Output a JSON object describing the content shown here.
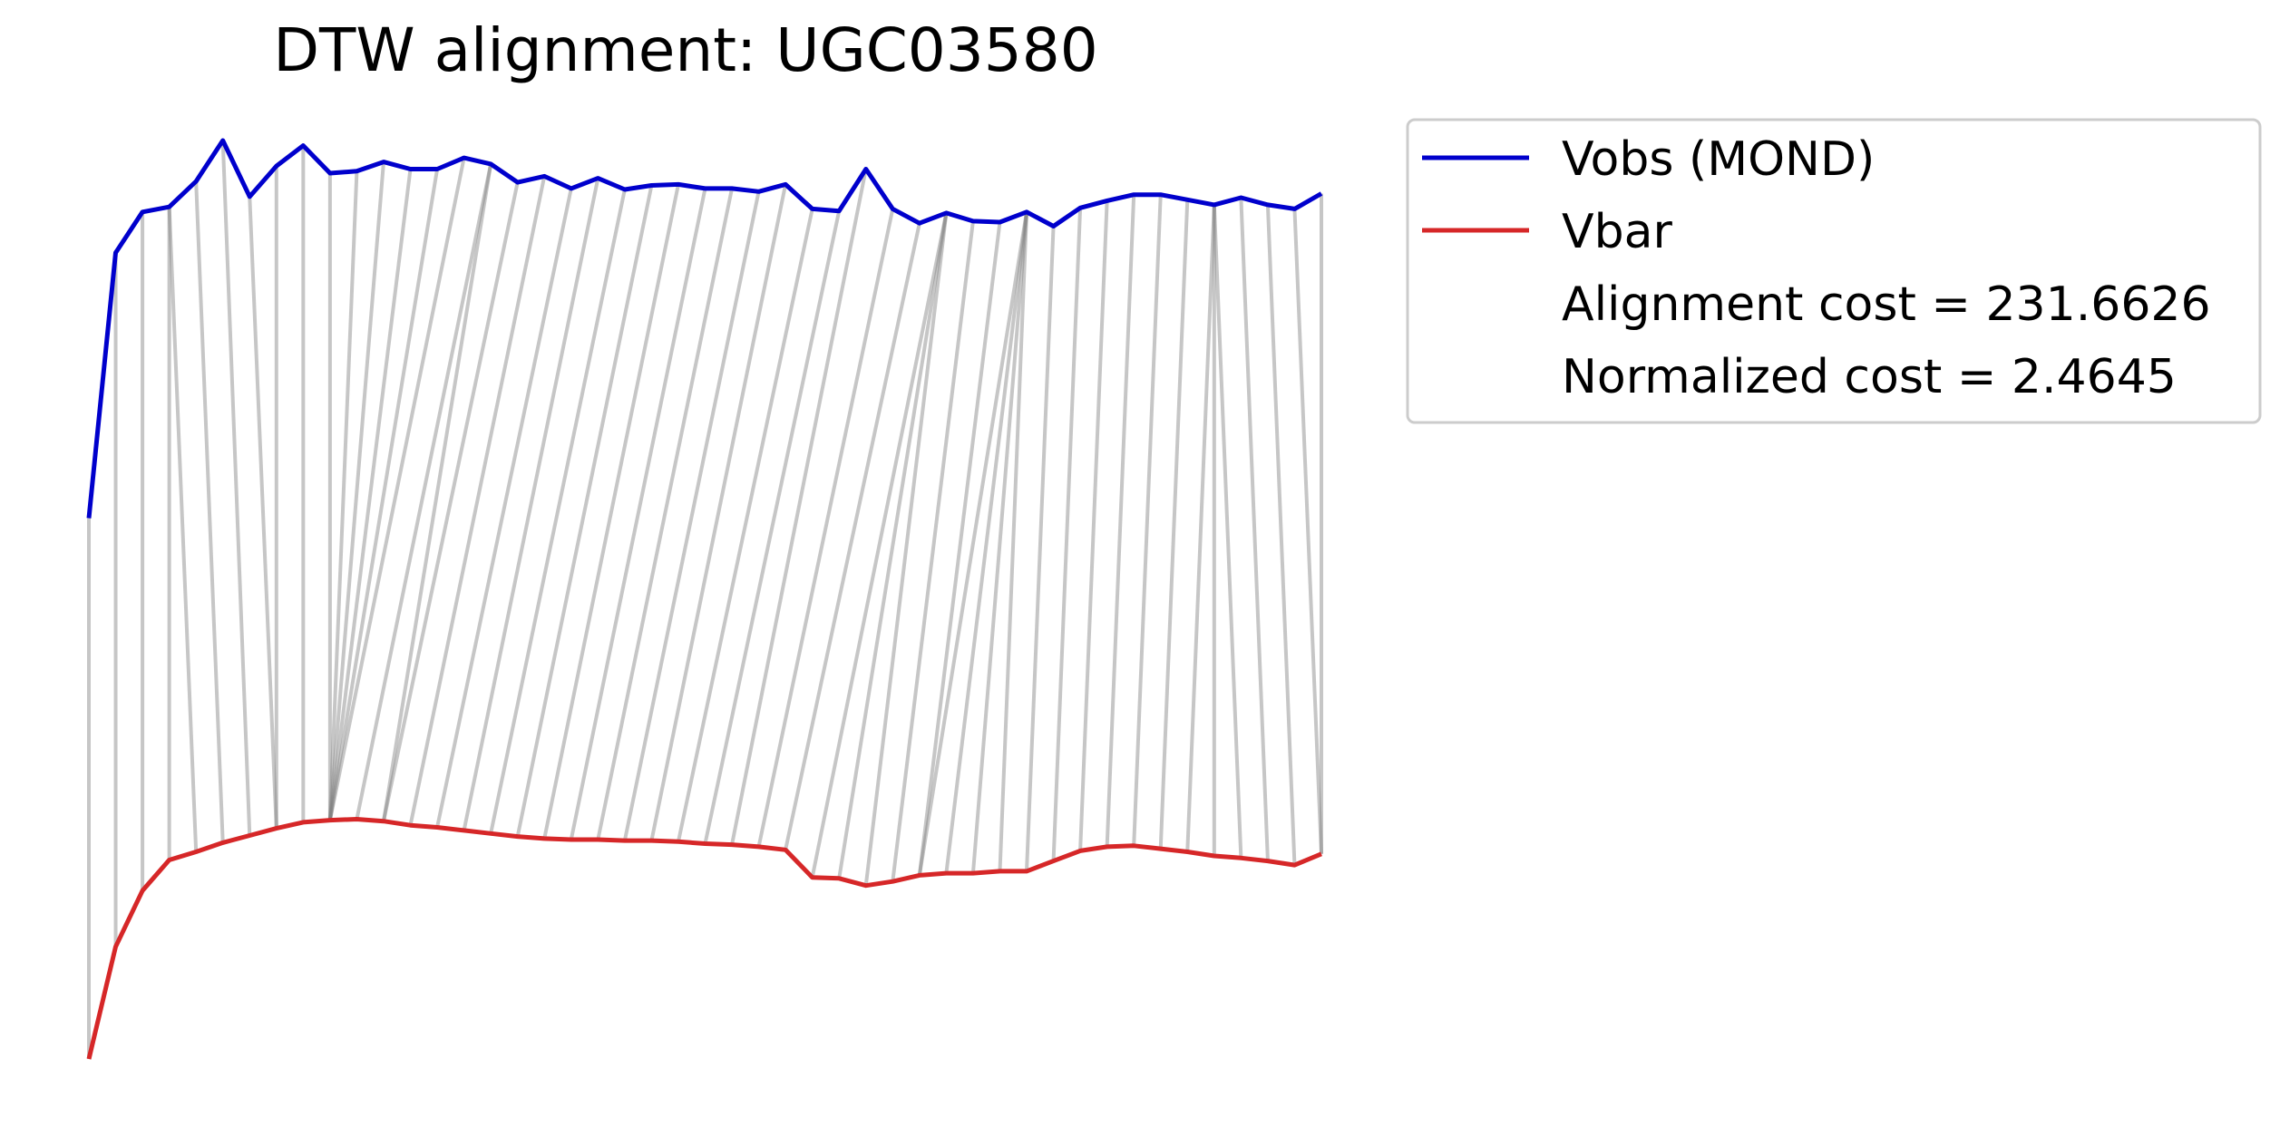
{
  "chart_data": {
    "type": "line",
    "title": "DTW alignment: UGC03580",
    "xlabel": "",
    "ylabel": "",
    "axes_visible": false,
    "legend_placement": "outside right, top",
    "series": [
      {
        "name": "Vobs (MOND)",
        "color": "#0000cc",
        "values": [
          0.53,
          0.79,
          0.83,
          0.835,
          0.86,
          0.9,
          0.845,
          0.875,
          0.895,
          0.868,
          0.87,
          0.879,
          0.872,
          0.872,
          0.883,
          0.877,
          0.859,
          0.865,
          0.853,
          0.863,
          0.852,
          0.856,
          0.857,
          0.853,
          0.853,
          0.85,
          0.857,
          0.833,
          0.831,
          0.872,
          0.833,
          0.819,
          0.829,
          0.821,
          0.82,
          0.83,
          0.816,
          0.834,
          0.841,
          0.847,
          0.847,
          0.842,
          0.837,
          0.844,
          0.837,
          0.833,
          0.848
        ]
      },
      {
        "name": "Vbar",
        "color": "#d62728",
        "values": [
          0,
          0.11,
          0.165,
          0.195,
          0.203,
          0.212,
          0.219,
          0.226,
          0.232,
          0.234,
          0.235,
          0.233,
          0.229,
          0.227,
          0.224,
          0.221,
          0.218,
          0.216,
          0.215,
          0.215,
          0.214,
          0.214,
          0.213,
          0.211,
          0.21,
          0.208,
          0.205,
          0.178,
          0.177,
          0.17,
          0.174,
          0.18,
          0.182,
          0.182,
          0.184,
          0.184,
          0.194,
          0.204,
          0.208,
          0.209,
          0.206,
          0.203,
          0.199,
          0.197,
          0.194,
          0.19,
          0.201
        ]
      }
    ],
    "alignment_color": "#808080",
    "alignment_path": [
      [
        0,
        0
      ],
      [
        1,
        1
      ],
      [
        2,
        2
      ],
      [
        3,
        3
      ],
      [
        3,
        4
      ],
      [
        4,
        5
      ],
      [
        5,
        6
      ],
      [
        6,
        7
      ],
      [
        7,
        7
      ],
      [
        8,
        8
      ],
      [
        9,
        9
      ],
      [
        10,
        9
      ],
      [
        11,
        9
      ],
      [
        12,
        9
      ],
      [
        13,
        9
      ],
      [
        14,
        9
      ],
      [
        15,
        10
      ],
      [
        15,
        11
      ],
      [
        16,
        11
      ],
      [
        17,
        12
      ],
      [
        18,
        13
      ],
      [
        19,
        14
      ],
      [
        20,
        15
      ],
      [
        21,
        16
      ],
      [
        22,
        17
      ],
      [
        23,
        18
      ],
      [
        24,
        19
      ],
      [
        25,
        20
      ],
      [
        26,
        21
      ],
      [
        27,
        22
      ],
      [
        28,
        23
      ],
      [
        29,
        24
      ],
      [
        30,
        25
      ],
      [
        31,
        26
      ],
      [
        32,
        27
      ],
      [
        32,
        28
      ],
      [
        32,
        29
      ],
      [
        33,
        30
      ],
      [
        34,
        31
      ],
      [
        35,
        31
      ],
      [
        35,
        32
      ],
      [
        35,
        33
      ],
      [
        35,
        34
      ],
      [
        36,
        35
      ],
      [
        37,
        36
      ],
      [
        38,
        37
      ],
      [
        39,
        38
      ],
      [
        40,
        39
      ],
      [
        41,
        40
      ],
      [
        42,
        41
      ],
      [
        42,
        42
      ],
      [
        42,
        43
      ],
      [
        43,
        44
      ],
      [
        44,
        45
      ],
      [
        45,
        46
      ],
      [
        46,
        46
      ]
    ],
    "annotations": [
      "Alignment cost = 231.6626",
      "Normalized cost = 2.4645"
    ]
  }
}
